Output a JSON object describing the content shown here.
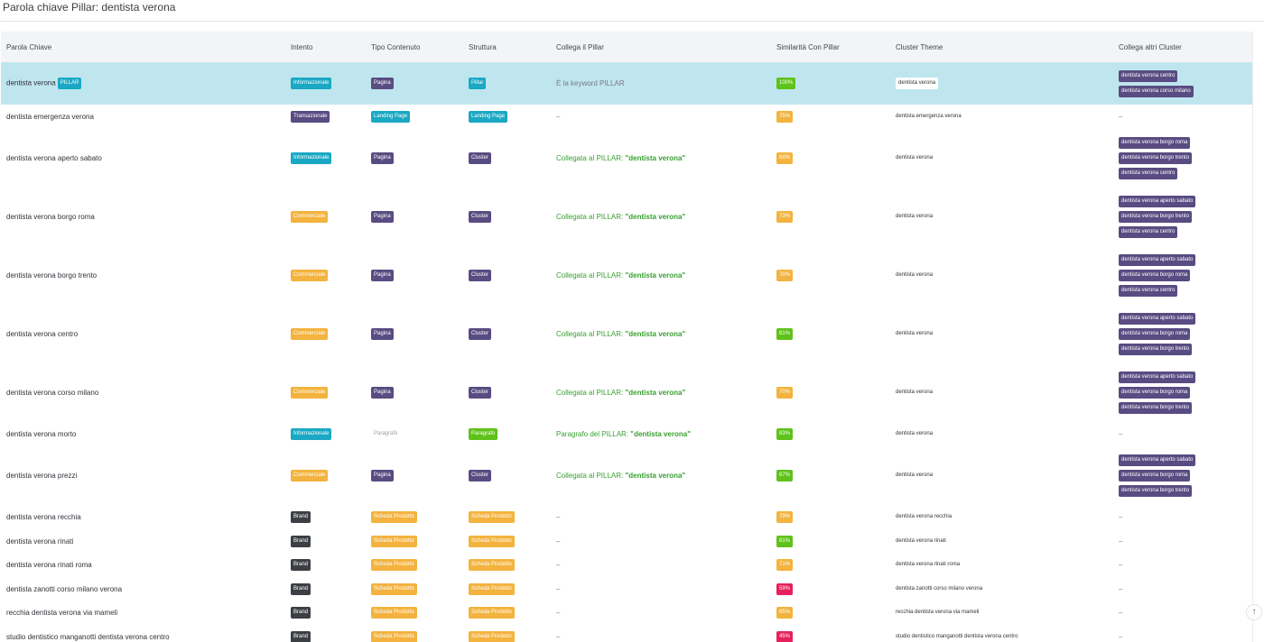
{
  "page": {
    "title": "Parola chiave Pillar: dentista verona"
  },
  "table": {
    "columns": [
      "Parola Chiave",
      "Intento",
      "Tipo Contenuto",
      "Struttura",
      "Collega il Pillar",
      "Similarità Con Pillar",
      "Cluster Theme",
      "Collega altri Cluster"
    ],
    "pillar_badge": "PILLAR",
    "rows": [
      {
        "keyword": "dentista verona",
        "is_pillar": true,
        "intent": "Informazionale",
        "intent_color": "#1aa8c4",
        "content": "Pagina",
        "content_color": "#584c82",
        "structure": "Pillar",
        "structure_color": "#1aa8c4",
        "link": "È la keyword PILLAR",
        "link_type": "plain",
        "similarity": "100%",
        "sim_color": "#5ec21a",
        "theme": "dentista verona",
        "theme_style": "white",
        "clusters": [
          "dentista verona centro",
          "dentista verona corso milano"
        ]
      },
      {
        "keyword": "dentista emergenza verona",
        "is_pillar": false,
        "intent": "Transazionale",
        "intent_color": "#584c82",
        "content": "Landing Page",
        "content_color": "#1aa8c4",
        "structure": "Landing Page",
        "structure_color": "#1aa8c4",
        "link": "–",
        "link_type": "plain",
        "similarity": "75%",
        "sim_color": "#f3b33e",
        "theme": "dentista emergenza verona",
        "theme_style": "none",
        "clusters": []
      },
      {
        "keyword": "dentista verona aperto sabato",
        "is_pillar": false,
        "intent": "Informazionale",
        "intent_color": "#1aa8c4",
        "content": "Pagina",
        "content_color": "#584c82",
        "structure": "Cluster",
        "structure_color": "#584c82",
        "link_prefix": "Collegata al PILLAR: ",
        "link_name": "\"dentista verona\"",
        "link_type": "green",
        "similarity": "68%",
        "sim_color": "#f3b33e",
        "theme": "dentista verona",
        "theme_style": "none",
        "clusters": [
          "dentista verona borgo roma",
          "dentista verona borgo trento",
          "dentista verona centro"
        ]
      },
      {
        "keyword": "dentista verona borgo roma",
        "is_pillar": false,
        "intent": "Commerciale",
        "intent_color": "#f3b33e",
        "content": "Pagina",
        "content_color": "#584c82",
        "structure": "Cluster",
        "structure_color": "#584c82",
        "link_prefix": "Collegata al PILLAR: ",
        "link_name": "\"dentista verona\"",
        "link_type": "green",
        "similarity": "73%",
        "sim_color": "#f3b33e",
        "theme": "dentista verona",
        "theme_style": "none",
        "clusters": [
          "dentista verona aperto sabato",
          "dentista verona borgo trento",
          "dentista verona centro"
        ]
      },
      {
        "keyword": "dentista verona borgo trento",
        "is_pillar": false,
        "intent": "Commerciale",
        "intent_color": "#f3b33e",
        "content": "Pagina",
        "content_color": "#584c82",
        "structure": "Cluster",
        "structure_color": "#584c82",
        "link_prefix": "Collegata al PILLAR: ",
        "link_name": "\"dentista verona\"",
        "link_type": "green",
        "similarity": "70%",
        "sim_color": "#f3b33e",
        "theme": "dentista verona",
        "theme_style": "none",
        "clusters": [
          "dentista verona aperto sabato",
          "dentista verona borgo roma",
          "dentista verona centro"
        ]
      },
      {
        "keyword": "dentista verona centro",
        "is_pillar": false,
        "intent": "Commerciale",
        "intent_color": "#f3b33e",
        "content": "Pagina",
        "content_color": "#584c82",
        "structure": "Cluster",
        "structure_color": "#584c82",
        "link_prefix": "Collegata al PILLAR: ",
        "link_name": "\"dentista verona\"",
        "link_type": "green",
        "similarity": "81%",
        "sim_color": "#5ec21a",
        "theme": "dentista verona",
        "theme_style": "none",
        "clusters": [
          "dentista verona aperto sabato",
          "dentista verona borgo roma",
          "dentista verona borgo trento"
        ]
      },
      {
        "keyword": "dentista verona corso milano",
        "is_pillar": false,
        "intent": "Commerciale",
        "intent_color": "#f3b33e",
        "content": "Pagina",
        "content_color": "#584c82",
        "structure": "Cluster",
        "structure_color": "#584c82",
        "link_prefix": "Collegata al PILLAR: ",
        "link_name": "\"dentista verona\"",
        "link_type": "green",
        "similarity": "70%",
        "sim_color": "#f3b33e",
        "theme": "dentista verona",
        "theme_style": "none",
        "clusters": [
          "dentista verona aperto sabato",
          "dentista verona borgo roma",
          "dentista verona borgo trento"
        ]
      },
      {
        "keyword": "dentista verona morto",
        "is_pillar": false,
        "intent": "Informazionale",
        "intent_color": "#1aa8c4",
        "content": "Paragrafo",
        "content_color": "transparent",
        "structure": "Paragrafo",
        "structure_color": "#5ec21a",
        "link_prefix": "Paragrafo del PILLAR: ",
        "link_name": "\"dentista verona\"",
        "link_type": "green",
        "similarity": "83%",
        "sim_color": "#5ec21a",
        "theme": "dentista verona",
        "theme_style": "none",
        "clusters": []
      },
      {
        "keyword": "dentista verona prezzi",
        "is_pillar": false,
        "intent": "Commerciale",
        "intent_color": "#f3b33e",
        "content": "Pagina",
        "content_color": "#584c82",
        "structure": "Cluster",
        "structure_color": "#584c82",
        "link_prefix": "Collegata al PILLAR: ",
        "link_name": "\"dentista verona\"",
        "link_type": "green",
        "similarity": "87%",
        "sim_color": "#5ec21a",
        "theme": "dentista verona",
        "theme_style": "none",
        "clusters": [
          "dentista verona aperto sabato",
          "dentista verona borgo roma",
          "dentista verona borgo trento"
        ]
      },
      {
        "keyword": "dentista verona recchia",
        "is_pillar": false,
        "intent": "Brand",
        "intent_color": "#3c3f44",
        "content": "Scheda Prodotto",
        "content_color": "#f3b33e",
        "structure": "Scheda Prodotto",
        "structure_color": "#f3b33e",
        "link": "–",
        "link_type": "plain",
        "similarity": "79%",
        "sim_color": "#f3b33e",
        "theme": "dentista verona recchia",
        "theme_style": "none",
        "clusters": []
      },
      {
        "keyword": "dentista verona rinati",
        "is_pillar": false,
        "intent": "Brand",
        "intent_color": "#3c3f44",
        "content": "Scheda Prodotto",
        "content_color": "#f3b33e",
        "structure": "Scheda Prodotto",
        "structure_color": "#f3b33e",
        "link": "–",
        "link_type": "plain",
        "similarity": "81%",
        "sim_color": "#5ec21a",
        "theme": "dentista verona rinati",
        "theme_style": "none",
        "clusters": []
      },
      {
        "keyword": "dentista verona rinati roma",
        "is_pillar": false,
        "intent": "Brand",
        "intent_color": "#3c3f44",
        "content": "Scheda Prodotto",
        "content_color": "#f3b33e",
        "structure": "Scheda Prodotto",
        "structure_color": "#f3b33e",
        "link": "–",
        "link_type": "plain",
        "similarity": "71%",
        "sim_color": "#f3b33e",
        "theme": "dentista verona rinati roma",
        "theme_style": "none",
        "clusters": []
      },
      {
        "keyword": "dentista zanotti corso milano verona",
        "is_pillar": false,
        "intent": "Brand",
        "intent_color": "#3c3f44",
        "content": "Scheda Prodotto",
        "content_color": "#f3b33e",
        "structure": "Scheda Prodotto",
        "structure_color": "#f3b33e",
        "link": "–",
        "link_type": "plain",
        "similarity": "59%",
        "sim_color": "#e6205c",
        "theme": "dentista zanotti corso milano verona",
        "theme_style": "none",
        "clusters": []
      },
      {
        "keyword": "recchia dentista verona via mameli",
        "is_pillar": false,
        "intent": "Brand",
        "intent_color": "#3c3f44",
        "content": "Scheda Prodotto",
        "content_color": "#f3b33e",
        "structure": "Scheda Prodotto",
        "structure_color": "#f3b33e",
        "link": "–",
        "link_type": "plain",
        "similarity": "65%",
        "sim_color": "#f3b33e",
        "theme": "recchia dentista verona via mameli",
        "theme_style": "none",
        "clusters": []
      },
      {
        "keyword": "studio dentistico manganotti dentista verona centro",
        "is_pillar": false,
        "intent": "Brand",
        "intent_color": "#3c3f44",
        "content": "Scheda Prodotto",
        "content_color": "#f3b33e",
        "structure": "Scheda Prodotto",
        "structure_color": "#f3b33e",
        "link": "–",
        "link_type": "plain",
        "similarity": "45%",
        "sim_color": "#e6205c",
        "theme": "studio dentistico manganotti dentista verona centro",
        "theme_style": "none",
        "clusters": []
      }
    ],
    "empty_clusters": "–"
  },
  "scroll_button": {
    "glyph": "↑"
  }
}
